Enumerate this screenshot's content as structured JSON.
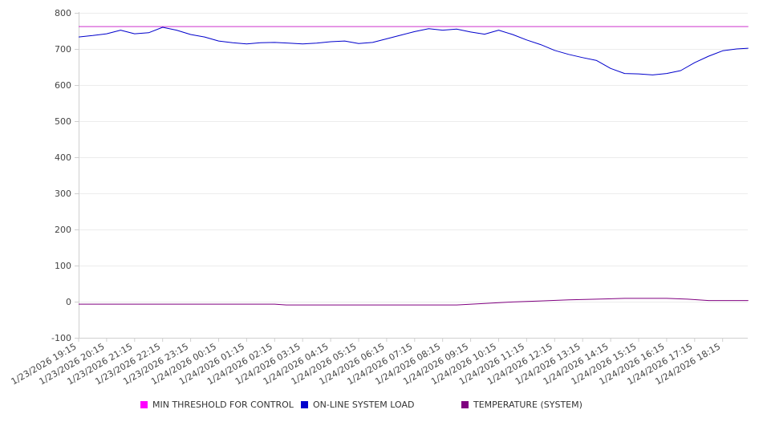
{
  "chart_data": {
    "type": "line",
    "title": "",
    "xlabel": "",
    "ylabel": "",
    "ylim": [
      -100,
      800
    ],
    "yticks": [
      -100,
      0,
      100,
      200,
      300,
      400,
      500,
      600,
      700,
      800
    ],
    "grid": true,
    "legend_position": "bottom",
    "categories": [
      "1/23/2026 19:15",
      "1/23/2026 20:15",
      "1/23/2026 21:15",
      "1/23/2026 22:15",
      "1/23/2026 23:15",
      "1/24/2026 00:15",
      "1/24/2026 01:15",
      "1/24/2026 02:15",
      "1/24/2026 03:15",
      "1/24/2026 04:15",
      "1/24/2026 05:15",
      "1/24/2026 06:15",
      "1/24/2026 07:15",
      "1/24/2026 08:15",
      "1/24/2026 09:15",
      "1/24/2026 10:15",
      "1/24/2026 11:15",
      "1/24/2026 12:15",
      "1/24/2026 13:15",
      "1/24/2026 14:15",
      "1/24/2026 15:15",
      "1/24/2026 16:15",
      "1/24/2026 17:15",
      "1/24/2026 18:15"
    ],
    "x_end": "1/24/2026 19:10",
    "series": [
      {
        "name": "MIN THRESHOLD FOR CONTROL",
        "color": "#ff00ff",
        "line_color": "#cc33cc",
        "x": [
          "1/23/2026 19:15",
          "1/24/2026 19:10"
        ],
        "values": [
          762,
          762
        ]
      },
      {
        "name": "ON-LINE SYSTEM LOAD",
        "color": "#0000cc",
        "line_color": "#0000cc",
        "x": [
          "1/23/2026 19:15",
          "1/23/2026 19:45",
          "1/23/2026 20:15",
          "1/23/2026 20:45",
          "1/23/2026 21:15",
          "1/23/2026 21:45",
          "1/23/2026 22:15",
          "1/23/2026 22:45",
          "1/23/2026 23:15",
          "1/23/2026 23:45",
          "1/24/2026 00:15",
          "1/24/2026 00:45",
          "1/24/2026 01:15",
          "1/24/2026 01:45",
          "1/24/2026 02:15",
          "1/24/2026 02:45",
          "1/24/2026 03:15",
          "1/24/2026 03:45",
          "1/24/2026 04:15",
          "1/24/2026 04:45",
          "1/24/2026 05:15",
          "1/24/2026 05:45",
          "1/24/2026 06:15",
          "1/24/2026 06:45",
          "1/24/2026 07:15",
          "1/24/2026 07:45",
          "1/24/2026 08:15",
          "1/24/2026 08:45",
          "1/24/2026 09:15",
          "1/24/2026 09:45",
          "1/24/2026 10:15",
          "1/24/2026 10:45",
          "1/24/2026 11:15",
          "1/24/2026 11:45",
          "1/24/2026 12:15",
          "1/24/2026 12:45",
          "1/24/2026 13:15",
          "1/24/2026 13:45",
          "1/24/2026 14:15",
          "1/24/2026 14:45",
          "1/24/2026 15:15",
          "1/24/2026 15:45",
          "1/24/2026 16:15",
          "1/24/2026 16:45",
          "1/24/2026 17:15",
          "1/24/2026 17:45",
          "1/24/2026 18:15",
          "1/24/2026 18:45",
          "1/24/2026 19:10"
        ],
        "values": [
          733,
          737,
          742,
          752,
          742,
          745,
          760,
          752,
          740,
          733,
          722,
          717,
          714,
          717,
          718,
          716,
          714,
          716,
          720,
          722,
          715,
          718,
          728,
          738,
          748,
          756,
          752,
          755,
          747,
          741,
          752,
          740,
          725,
          712,
          696,
          685,
          676,
          668,
          646,
          632,
          631,
          628,
          632,
          640,
          662,
          680,
          695,
          700,
          702
        ]
      },
      {
        "name": "TEMPERATURE (SYSTEM)",
        "color": "#800080",
        "line_color": "#800080",
        "x": [
          "1/23/2026 19:15",
          "1/24/2026 02:15",
          "1/24/2026 02:40",
          "1/24/2026 08:45",
          "1/24/2026 09:45",
          "1/24/2026 10:45",
          "1/24/2026 11:45",
          "1/24/2026 12:45",
          "1/24/2026 13:45",
          "1/24/2026 14:45",
          "1/24/2026 16:15",
          "1/24/2026 17:00",
          "1/24/2026 17:45",
          "1/24/2026 19:10"
        ],
        "values": [
          -7,
          -7,
          -9,
          -9,
          -5,
          -1,
          2,
          5,
          7,
          9,
          9,
          7,
          3,
          3
        ]
      }
    ]
  }
}
